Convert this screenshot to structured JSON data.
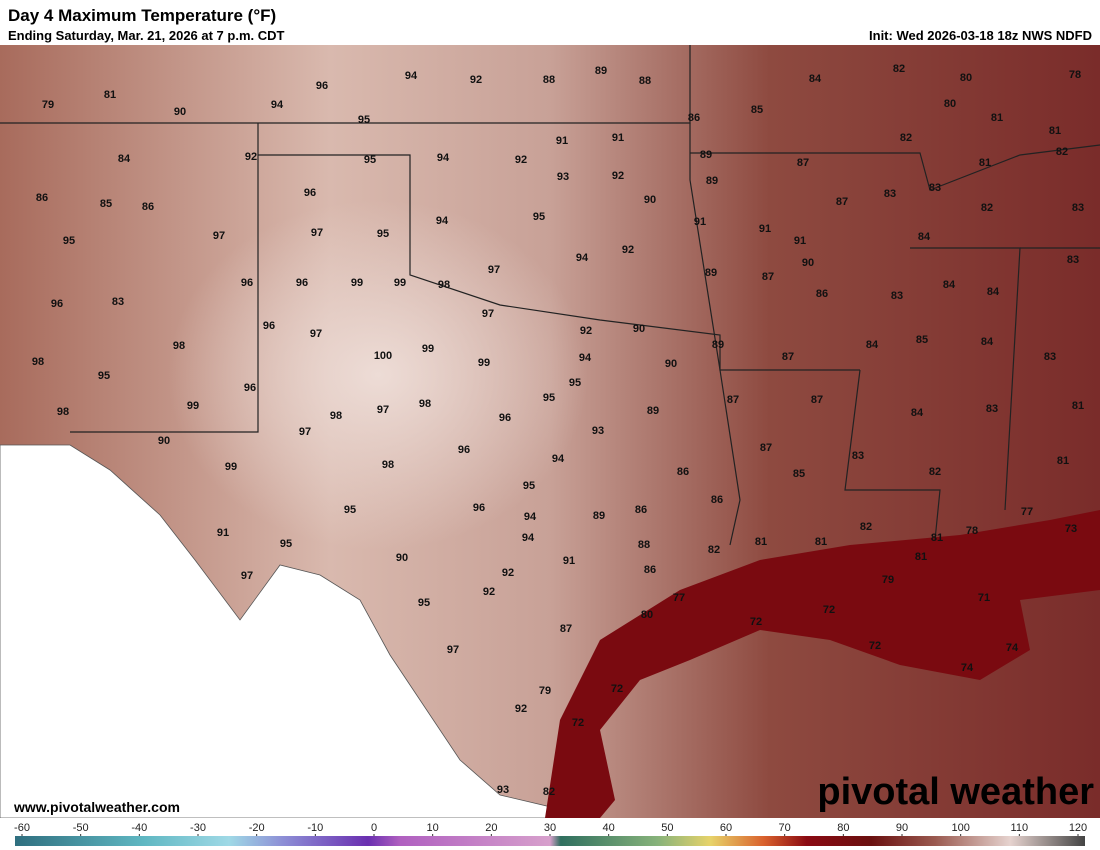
{
  "header": {
    "title": "Day 4 Maximum Temperature (°F)",
    "subtitle": "Ending Saturday, Mar. 21, 2026 at 7 p.m. CDT",
    "init": "Init: Wed 2026-03-18 18z NWS NDFD"
  },
  "footer": {
    "website": "www.pivotalweather.com",
    "brand": "pivotal weather"
  },
  "map": {
    "labels": [
      79,
      81,
      90,
      94,
      96,
      94,
      92,
      88,
      89,
      88,
      84,
      82,
      80,
      78,
      85,
      86,
      80,
      81,
      82,
      81,
      82,
      95,
      95,
      94,
      92,
      91,
      91,
      89,
      87,
      81,
      84,
      92,
      93,
      92,
      89,
      83,
      83,
      82,
      83,
      86,
      85,
      86,
      96,
      90,
      87,
      95,
      94,
      91,
      91,
      97,
      95,
      97,
      91,
      84,
      95,
      92,
      94,
      90,
      83,
      97,
      89,
      87,
      96,
      96,
      99,
      99,
      98,
      84,
      84,
      86,
      83,
      96,
      83,
      97,
      96,
      97,
      92,
      90,
      85,
      84,
      89,
      84,
      100,
      99,
      98,
      87,
      94,
      99,
      90,
      83,
      98,
      95,
      95,
      96,
      95,
      87,
      87,
      98,
      97,
      99,
      89,
      84,
      83,
      81,
      98,
      98,
      96,
      97,
      93,
      90,
      87,
      96,
      83,
      81,
      94,
      99,
      98,
      86,
      85,
      82,
      95,
      86,
      96,
      95,
      94,
      89,
      86,
      82,
      77,
      78,
      73,
      91,
      94,
      81,
      81,
      81,
      95,
      88,
      82,
      90,
      91,
      81,
      92,
      86,
      97,
      79,
      92,
      77,
      72,
      71,
      95,
      80,
      72,
      87,
      72,
      74,
      97,
      74,
      79,
      72,
      92,
      72,
      93,
      82
    ]
  },
  "colorbar": {
    "ticks": [
      -60,
      -50,
      -40,
      -30,
      -20,
      -10,
      0,
      10,
      20,
      30,
      40,
      50,
      60,
      70,
      80,
      90,
      100,
      110,
      120
    ]
  }
}
